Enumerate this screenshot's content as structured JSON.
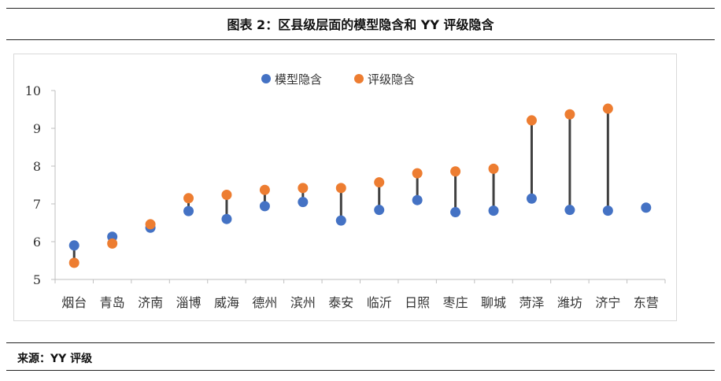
{
  "header": {
    "title": "图表 2：区县级层面的模型隐含和 YY 评级隐含"
  },
  "footer": {
    "source": "来源：YY 评级"
  },
  "chart_data": {
    "type": "scatter",
    "title": "",
    "xlabel": "",
    "ylabel": "",
    "ylim": [
      5,
      10
    ],
    "yticks": [
      "5",
      "6",
      "7",
      "8",
      "9",
      "10"
    ],
    "categories": [
      "烟台",
      "青岛",
      "济南",
      "淄博",
      "威海",
      "德州",
      "滨州",
      "泰安",
      "临沂",
      "日照",
      "枣庄",
      "聊城",
      "菏泽",
      "潍坊",
      "济宁",
      "东营"
    ],
    "series": [
      {
        "name": "模型隐含",
        "color": "#4472C4",
        "values": [
          5.9,
          6.13,
          6.37,
          6.81,
          6.6,
          6.94,
          7.05,
          6.56,
          6.84,
          7.1,
          6.78,
          6.82,
          7.14,
          6.84,
          6.82,
          6.9
        ]
      },
      {
        "name": "评级隐含",
        "color": "#ED7D31",
        "values": [
          5.44,
          5.95,
          6.46,
          7.15,
          7.24,
          7.37,
          7.42,
          7.42,
          7.57,
          7.81,
          7.86,
          7.93,
          9.21,
          9.37,
          9.52,
          null
        ]
      }
    ],
    "connector_color": "#404040",
    "grid": false,
    "legend_position": "top-center"
  }
}
